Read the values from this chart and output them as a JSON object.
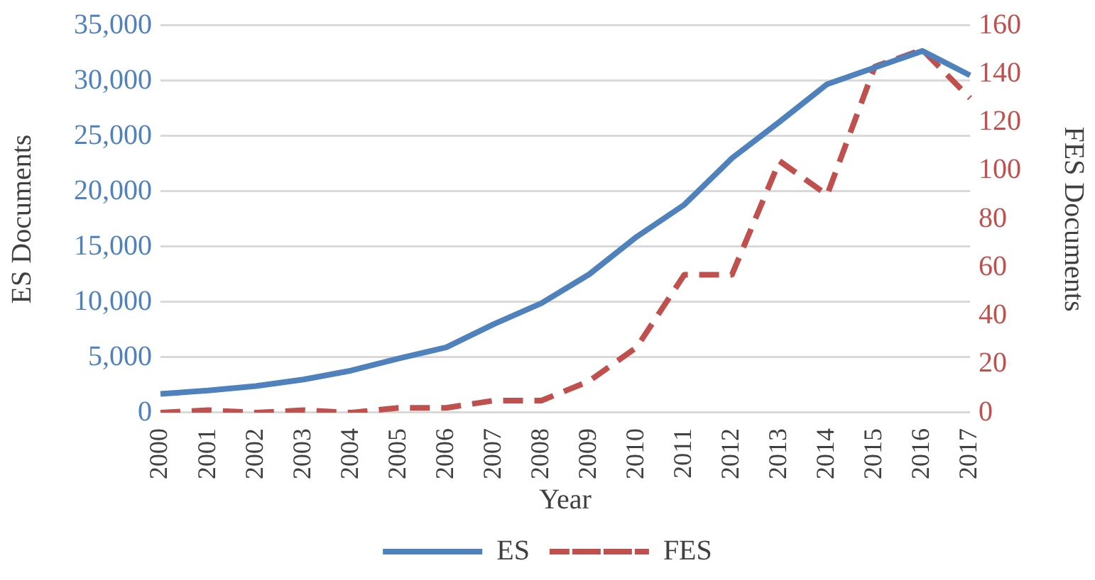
{
  "chart_data": {
    "type": "line",
    "xlabel": "Year",
    "ylabel": "ES Documents",
    "y2label": "FES Documents",
    "categories": [
      "2000",
      "2001",
      "2002",
      "2003",
      "2004",
      "2005",
      "2006",
      "2007",
      "2008",
      "2009",
      "2010",
      "2011",
      "2012",
      "2013",
      "2014",
      "2015",
      "2016",
      "2017"
    ],
    "series": [
      {
        "name": "ES",
        "color": "#4f81bd",
        "line_style": "solid",
        "values": [
          1700,
          2000,
          2400,
          3000,
          3800,
          4900,
          5900,
          8000,
          9900,
          12500,
          15900,
          18800,
          23000,
          26300,
          29700,
          31200,
          32700,
          30500
        ]
      },
      {
        "name": "FES",
        "color": "#c0504d",
        "line_style": "dashed",
        "axis": "y2",
        "values": [
          0,
          1,
          0,
          1,
          0,
          2,
          2,
          5,
          5,
          13,
          27,
          57,
          57,
          104,
          90,
          143,
          150,
          130
        ]
      }
    ],
    "ylim": [
      0,
      35000
    ],
    "yticks": [
      {
        "value": 0,
        "label": "0"
      },
      {
        "value": 5000,
        "label": "5,000"
      },
      {
        "value": 10000,
        "label": "10,000"
      },
      {
        "value": 15000,
        "label": "15,000"
      },
      {
        "value": 20000,
        "label": "20,000"
      },
      {
        "value": 25000,
        "label": "25,000"
      },
      {
        "value": 30000,
        "label": "30,000"
      },
      {
        "value": 35000,
        "label": "35,000"
      }
    ],
    "y2lim": [
      0,
      160
    ],
    "y2ticks": [
      0,
      20,
      40,
      60,
      80,
      100,
      120,
      140,
      160
    ],
    "grid": "y",
    "legend": "bottom",
    "marker": "none"
  }
}
